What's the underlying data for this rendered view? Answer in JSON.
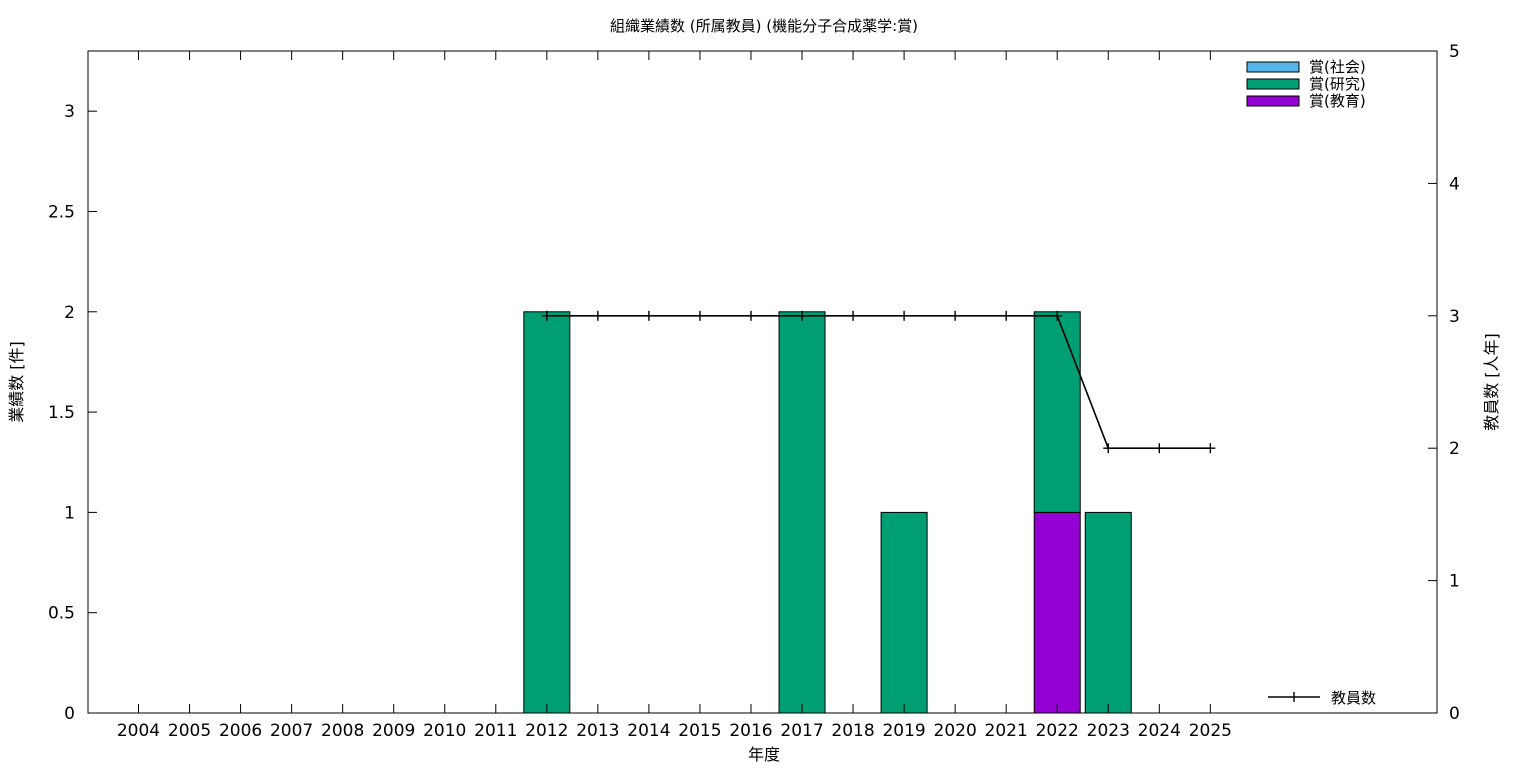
{
  "chart_data": {
    "type": "bar",
    "stacked": true,
    "title": "組織業績数 (所属教員) (機能分子合成薬学:賞)",
    "xlabel": "年度",
    "ylabel": "業績数 [件]",
    "y2label": "教員数 [人年]",
    "categories": [
      "2004",
      "2005",
      "2006",
      "2007",
      "2008",
      "2009",
      "2010",
      "2011",
      "2012",
      "2013",
      "2014",
      "2015",
      "2016",
      "2017",
      "2018",
      "2019",
      "2020",
      "2021",
      "2022",
      "2023",
      "2024",
      "2025"
    ],
    "ylim": [
      0,
      3.3
    ],
    "yticks": [
      "0",
      "0.5",
      "1",
      "1.5",
      "2",
      "2.5",
      "3"
    ],
    "y2lim": [
      0,
      5
    ],
    "y2ticks": [
      "0",
      "1",
      "2",
      "3",
      "4",
      "5"
    ],
    "grid": false,
    "legend_placement": "top-right",
    "series": [
      {
        "name": "賞(教育)",
        "color": "#9400d3",
        "values": [
          0,
          0,
          0,
          0,
          0,
          0,
          0,
          0,
          0,
          0,
          0,
          0,
          0,
          0,
          0,
          0,
          0,
          0,
          1,
          0,
          0,
          0
        ]
      },
      {
        "name": "賞(研究)",
        "color": "#009e73",
        "values": [
          0,
          0,
          0,
          0,
          0,
          0,
          0,
          0,
          2,
          0,
          0,
          0,
          0,
          2,
          0,
          1,
          0,
          0,
          1,
          1,
          0,
          0
        ]
      },
      {
        "name": "賞(社会)",
        "color": "#56b4e9",
        "values": [
          0,
          0,
          0,
          0,
          0,
          0,
          0,
          0,
          0,
          0,
          0,
          0,
          0,
          0,
          0,
          0,
          0,
          0,
          0,
          0,
          0,
          0
        ]
      }
    ],
    "line_series": {
      "name": "教員数",
      "color": "#000000",
      "axis": "y2",
      "x": [
        "2012",
        "2013",
        "2014",
        "2015",
        "2016",
        "2017",
        "2018",
        "2019",
        "2020",
        "2021",
        "2022",
        "2023",
        "2024",
        "2025"
      ],
      "values": [
        3,
        3,
        3,
        3,
        3,
        3,
        3,
        3,
        3,
        3,
        3,
        2,
        2,
        2
      ]
    },
    "legend_order": [
      "賞(社会)",
      "賞(研究)",
      "賞(教育)"
    ]
  }
}
